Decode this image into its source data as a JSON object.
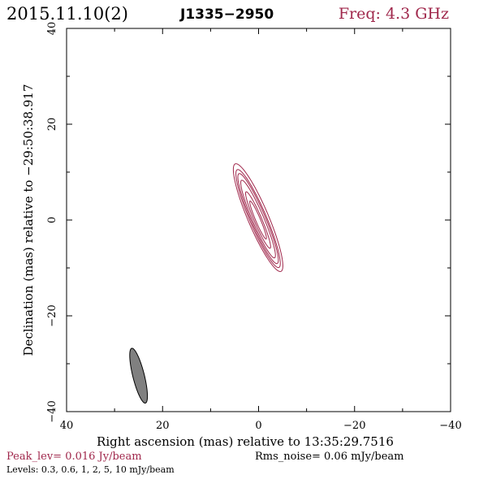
{
  "header": {
    "date": "2015.11.10(2)",
    "source": "J1335−2950",
    "frequency": "Freq: 4.3 GHz"
  },
  "footer": {
    "peak": "Peak_lev=  0.016 Jy/beam",
    "rms": "Rms_noise= 0.06 mJy/beam",
    "levels": "Levels: 0.3, 0.6,   1,   2,   5,  10 mJy/beam"
  },
  "chart_data": {
    "type": "contour",
    "xlabel": "Right ascension (mas) relative to 13:35:29.7516",
    "ylabel": "Declination (mas) relative to −29:50:38.917",
    "xlim": [
      40,
      -40
    ],
    "ylim": [
      -40,
      40
    ],
    "x_ticks": [
      40,
      20,
      0,
      -20,
      -40
    ],
    "x_tick_labels": [
      "40",
      "20",
      "0",
      "−20",
      "−40"
    ],
    "y_ticks": [
      -40,
      -20,
      0,
      20,
      40
    ],
    "y_tick_labels": [
      "−40",
      "−20",
      "0",
      "20",
      "40"
    ],
    "contour_color": "#a0284c",
    "beam_color": "#808080",
    "beam": {
      "x": 25,
      "y": -32.5,
      "major": 11.8,
      "minor": 2.4,
      "pa": 14
    },
    "contours": [
      {
        "level_mJy": 0.3,
        "x": 0.1,
        "y": 0.5,
        "major": 24.4,
        "minor": 4.3,
        "pa": 23
      },
      {
        "level_mJy": 0.6,
        "x": 0.1,
        "y": 0.3,
        "major": 22.2,
        "minor": 3.5,
        "pa": 23
      },
      {
        "level_mJy": 1,
        "x": 0.1,
        "y": 0.3,
        "major": 20.4,
        "minor": 3.0,
        "pa": 23
      },
      {
        "level_mJy": 2,
        "x": 0.1,
        "y": 0.2,
        "major": 17.6,
        "minor": 2.4,
        "pa": 23
      },
      {
        "level_mJy": 5,
        "x": 0.1,
        "y": 0.0,
        "major": 12.8,
        "minor": 1.6,
        "pa": 23
      },
      {
        "level_mJy": 10,
        "x": 0.1,
        "y": 0.0,
        "major": 8.6,
        "minor": 1.0,
        "pa": 23
      }
    ]
  }
}
